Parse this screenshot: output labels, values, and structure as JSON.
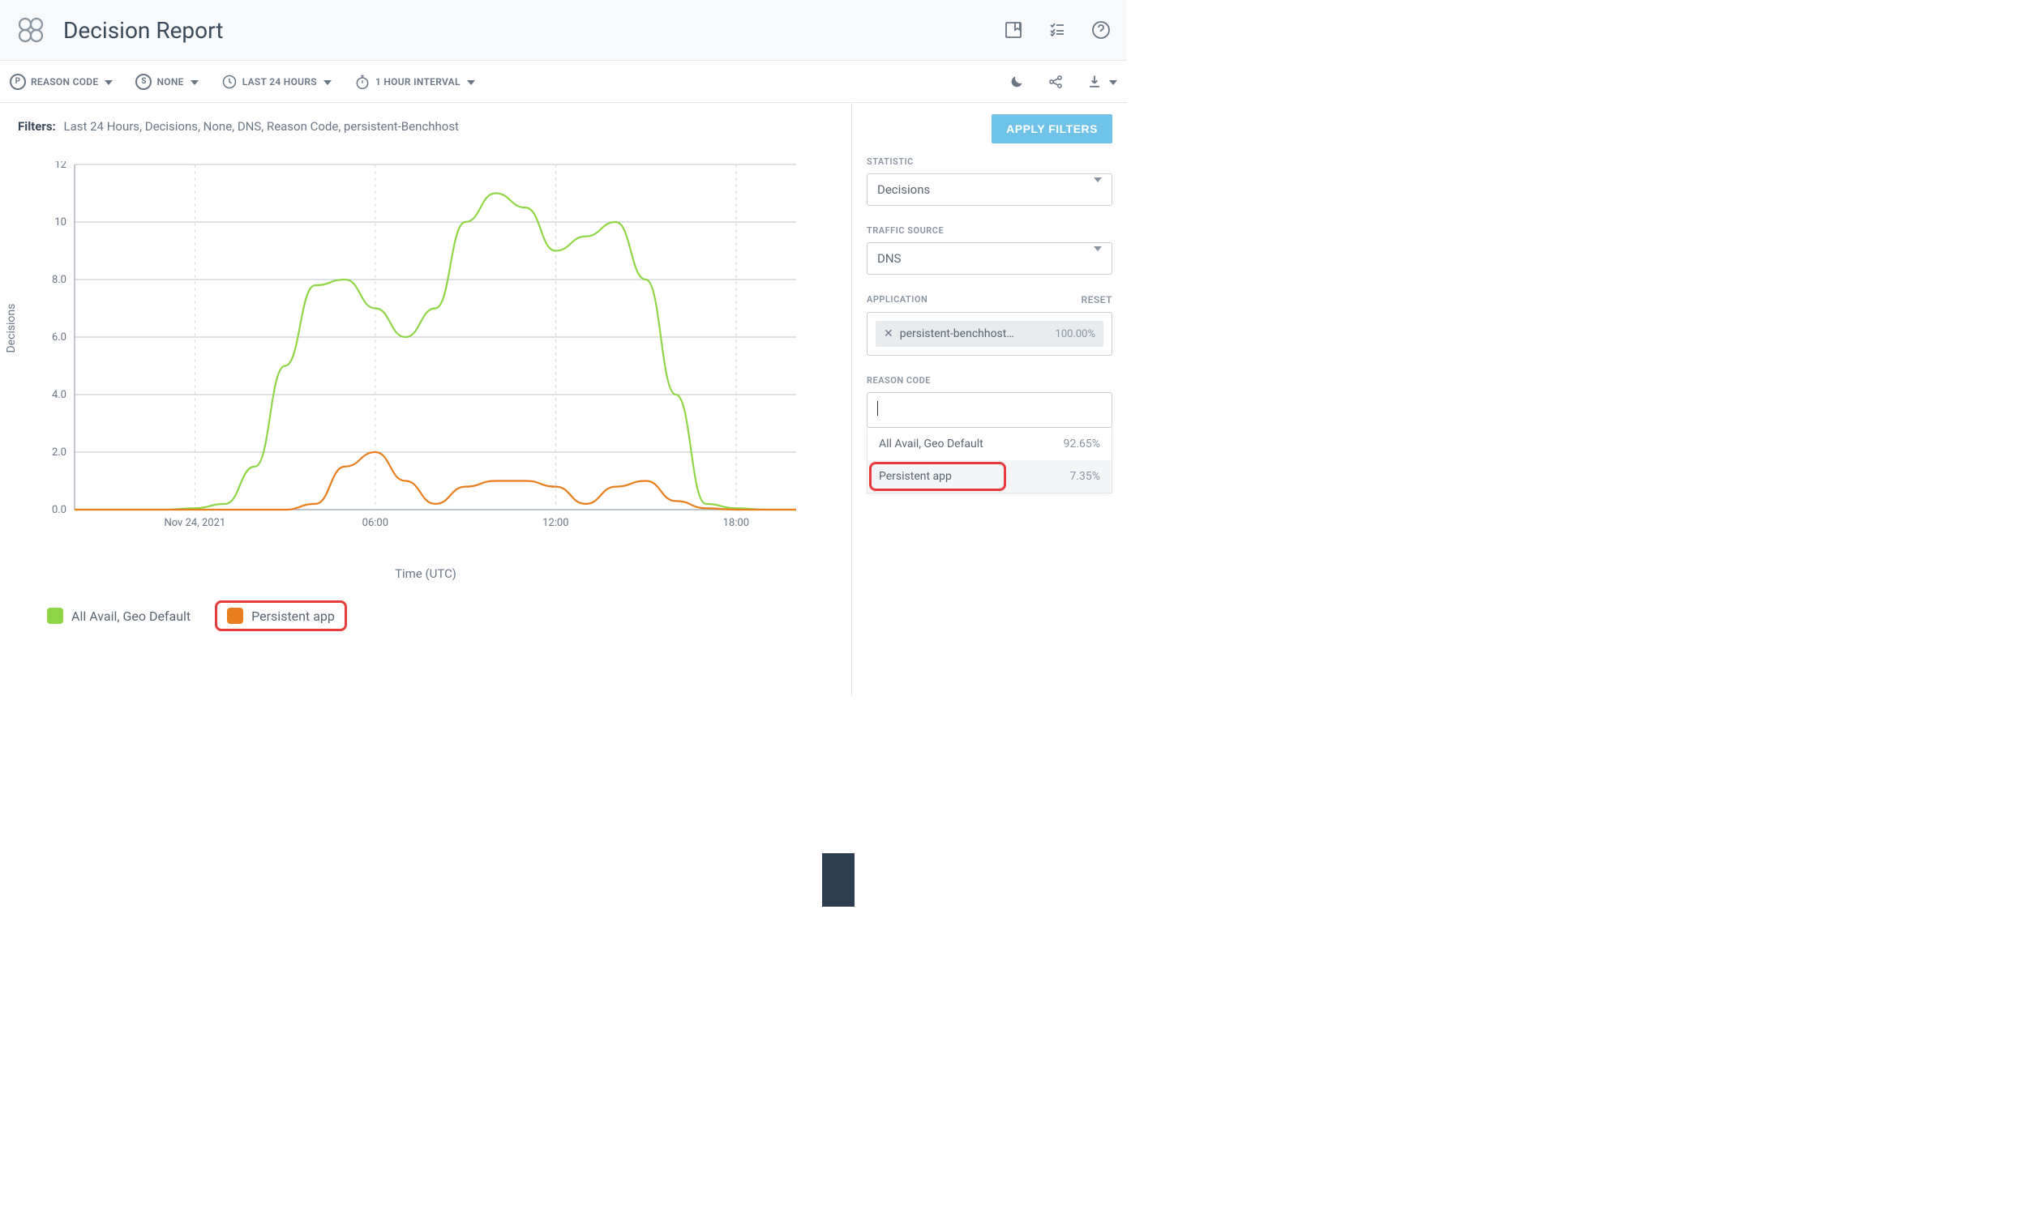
{
  "header": {
    "title": "Decision Report"
  },
  "toolbar": {
    "reason_code": "REASON CODE",
    "none": "NONE",
    "time_range": "LAST 24 HOURS",
    "interval": "1 HOUR INTERVAL"
  },
  "filters_line": {
    "label": "Filters:",
    "items": [
      "Last 24 Hours",
      "Decisions",
      "None",
      "DNS",
      "Reason Code",
      "persistent-Benchhost"
    ]
  },
  "chart": {
    "type": "line",
    "ylabel": "Decisions",
    "xlabel": "Time (UTC)",
    "ylim": [
      0,
      12
    ],
    "yticks": [
      0.0,
      2.0,
      4.0,
      6.0,
      8.0,
      10,
      12
    ],
    "ytick_labels": [
      "0.0",
      "2.0",
      "4.0",
      "6.0",
      "8.0",
      "10",
      "12"
    ],
    "x_points": 25,
    "xtick_positions": [
      4,
      10,
      16,
      22
    ],
    "xtick_labels": [
      "Nov 24, 2021",
      "06:00",
      "12:00",
      "18:00"
    ],
    "grid_color": "#a8b0ba",
    "vgrid_color": "#cfd4da",
    "background": "#ffffff",
    "axis_color": "#6b7684",
    "label_fontsize": 13,
    "line_width": 2.2,
    "series": [
      {
        "name": "All Avail, Geo Default",
        "color": "#8fd646",
        "values": [
          0,
          0,
          0,
          0,
          0.05,
          0.2,
          1.5,
          5,
          7.8,
          8,
          7,
          6,
          7,
          10,
          11,
          10.5,
          9,
          9.5,
          10,
          8,
          4,
          0.2,
          0.05,
          0,
          0
        ]
      },
      {
        "name": "Persistent app",
        "color": "#e97e1e",
        "values": [
          0,
          0,
          0,
          0,
          0,
          0,
          0,
          0,
          0.2,
          1.5,
          2,
          1,
          0.2,
          0.8,
          1,
          1,
          0.8,
          0.2,
          0.8,
          1,
          0.3,
          0.05,
          0,
          0,
          0
        ]
      }
    ]
  },
  "legend": {
    "items": [
      {
        "label": "All Avail, Geo Default",
        "color": "#8fd646",
        "highlight": false
      },
      {
        "label": "Persistent app",
        "color": "#e97e1e",
        "highlight": true
      }
    ]
  },
  "sidebar": {
    "apply": "APPLY FILTERS",
    "statistic": {
      "label": "STATISTIC",
      "value": "Decisions"
    },
    "traffic_source": {
      "label": "TRAFFIC SOURCE",
      "value": "DNS"
    },
    "application": {
      "label": "APPLICATION",
      "reset": "RESET",
      "chip": {
        "text": "persistent-benchhost…",
        "pct": "100.00%"
      }
    },
    "reason_code": {
      "label": "REASON CODE",
      "options": [
        {
          "text": "All Avail, Geo Default",
          "pct": "92.65%",
          "highlight": false
        },
        {
          "text": "Persistent app",
          "pct": "7.35%",
          "highlight": true
        }
      ]
    }
  }
}
